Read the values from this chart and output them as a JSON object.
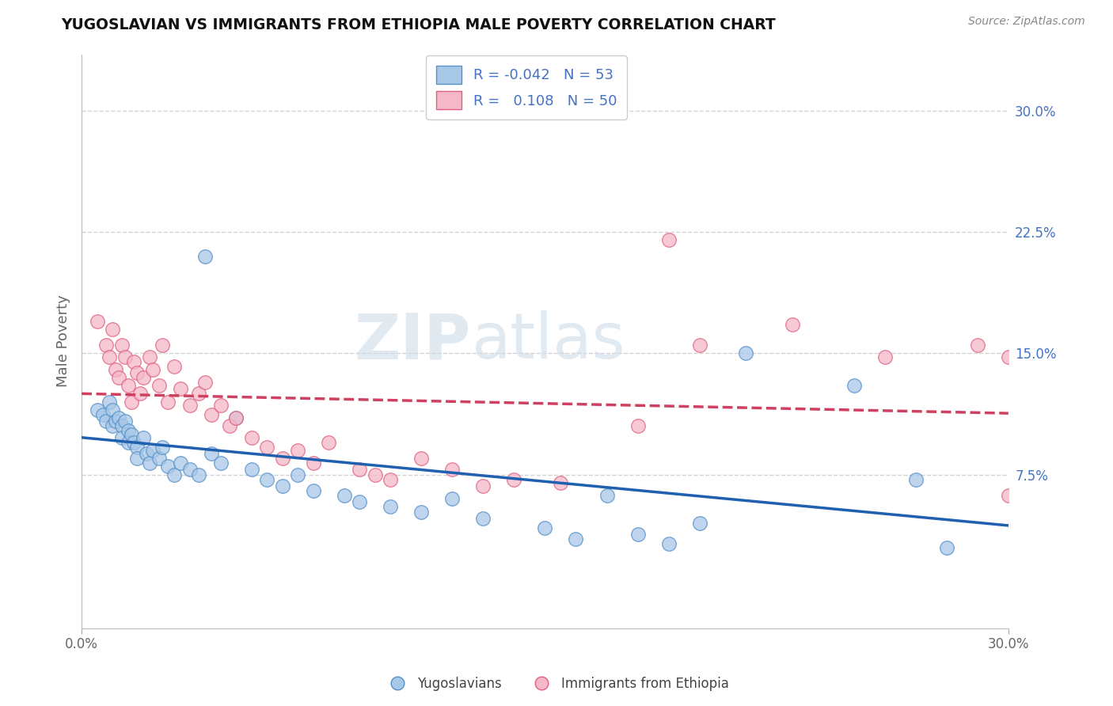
{
  "title": "YUGOSLAVIAN VS IMMIGRANTS FROM ETHIOPIA MALE POVERTY CORRELATION CHART",
  "source": "Source: ZipAtlas.com",
  "ylabel": "Male Poverty",
  "right_yticks": [
    "30.0%",
    "22.5%",
    "15.0%",
    "7.5%"
  ],
  "right_ytick_vals": [
    0.3,
    0.225,
    0.15,
    0.075
  ],
  "xmin": 0.0,
  "xmax": 0.3,
  "ymin": -0.02,
  "ymax": 0.335,
  "color_blue": "#a8c8e8",
  "color_pink": "#f4b8c8",
  "color_blue_edge": "#5590c8",
  "color_pink_edge": "#e06080",
  "color_blue_line": "#2060b0",
  "color_pink_line": "#d04060",
  "scatter_blue": [
    [
      0.005,
      0.115
    ],
    [
      0.007,
      0.112
    ],
    [
      0.008,
      0.108
    ],
    [
      0.009,
      0.12
    ],
    [
      0.01,
      0.115
    ],
    [
      0.01,
      0.105
    ],
    [
      0.011,
      0.108
    ],
    [
      0.012,
      0.11
    ],
    [
      0.013,
      0.105
    ],
    [
      0.013,
      0.098
    ],
    [
      0.014,
      0.108
    ],
    [
      0.015,
      0.102
    ],
    [
      0.015,
      0.095
    ],
    [
      0.016,
      0.1
    ],
    [
      0.017,
      0.095
    ],
    [
      0.018,
      0.092
    ],
    [
      0.018,
      0.085
    ],
    [
      0.02,
      0.098
    ],
    [
      0.021,
      0.088
    ],
    [
      0.022,
      0.082
    ],
    [
      0.023,
      0.09
    ],
    [
      0.025,
      0.085
    ],
    [
      0.026,
      0.092
    ],
    [
      0.028,
      0.08
    ],
    [
      0.03,
      0.075
    ],
    [
      0.032,
      0.082
    ],
    [
      0.035,
      0.078
    ],
    [
      0.038,
      0.075
    ],
    [
      0.04,
      0.21
    ],
    [
      0.042,
      0.088
    ],
    [
      0.045,
      0.082
    ],
    [
      0.05,
      0.11
    ],
    [
      0.055,
      0.078
    ],
    [
      0.06,
      0.072
    ],
    [
      0.065,
      0.068
    ],
    [
      0.07,
      0.075
    ],
    [
      0.075,
      0.065
    ],
    [
      0.085,
      0.062
    ],
    [
      0.09,
      0.058
    ],
    [
      0.1,
      0.055
    ],
    [
      0.11,
      0.052
    ],
    [
      0.12,
      0.06
    ],
    [
      0.13,
      0.048
    ],
    [
      0.15,
      0.042
    ],
    [
      0.16,
      0.035
    ],
    [
      0.17,
      0.062
    ],
    [
      0.18,
      0.038
    ],
    [
      0.19,
      0.032
    ],
    [
      0.2,
      0.045
    ],
    [
      0.215,
      0.15
    ],
    [
      0.25,
      0.13
    ],
    [
      0.27,
      0.072
    ],
    [
      0.28,
      0.03
    ]
  ],
  "scatter_pink": [
    [
      0.005,
      0.17
    ],
    [
      0.008,
      0.155
    ],
    [
      0.009,
      0.148
    ],
    [
      0.01,
      0.165
    ],
    [
      0.011,
      0.14
    ],
    [
      0.012,
      0.135
    ],
    [
      0.013,
      0.155
    ],
    [
      0.014,
      0.148
    ],
    [
      0.015,
      0.13
    ],
    [
      0.016,
      0.12
    ],
    [
      0.017,
      0.145
    ],
    [
      0.018,
      0.138
    ],
    [
      0.019,
      0.125
    ],
    [
      0.02,
      0.135
    ],
    [
      0.022,
      0.148
    ],
    [
      0.023,
      0.14
    ],
    [
      0.025,
      0.13
    ],
    [
      0.026,
      0.155
    ],
    [
      0.028,
      0.12
    ],
    [
      0.03,
      0.142
    ],
    [
      0.032,
      0.128
    ],
    [
      0.035,
      0.118
    ],
    [
      0.038,
      0.125
    ],
    [
      0.04,
      0.132
    ],
    [
      0.042,
      0.112
    ],
    [
      0.045,
      0.118
    ],
    [
      0.048,
      0.105
    ],
    [
      0.05,
      0.11
    ],
    [
      0.055,
      0.098
    ],
    [
      0.06,
      0.092
    ],
    [
      0.065,
      0.085
    ],
    [
      0.07,
      0.09
    ],
    [
      0.075,
      0.082
    ],
    [
      0.08,
      0.095
    ],
    [
      0.09,
      0.078
    ],
    [
      0.095,
      0.075
    ],
    [
      0.1,
      0.072
    ],
    [
      0.11,
      0.085
    ],
    [
      0.12,
      0.078
    ],
    [
      0.13,
      0.068
    ],
    [
      0.14,
      0.072
    ],
    [
      0.155,
      0.07
    ],
    [
      0.18,
      0.105
    ],
    [
      0.19,
      0.22
    ],
    [
      0.2,
      0.155
    ],
    [
      0.23,
      0.168
    ],
    [
      0.26,
      0.148
    ],
    [
      0.29,
      0.155
    ],
    [
      0.3,
      0.148
    ],
    [
      0.3,
      0.062
    ]
  ],
  "watermark_top": "ZIP",
  "watermark_bot": "atlas",
  "grid_color": "#c8c8c8",
  "bg_color": "#ffffff"
}
